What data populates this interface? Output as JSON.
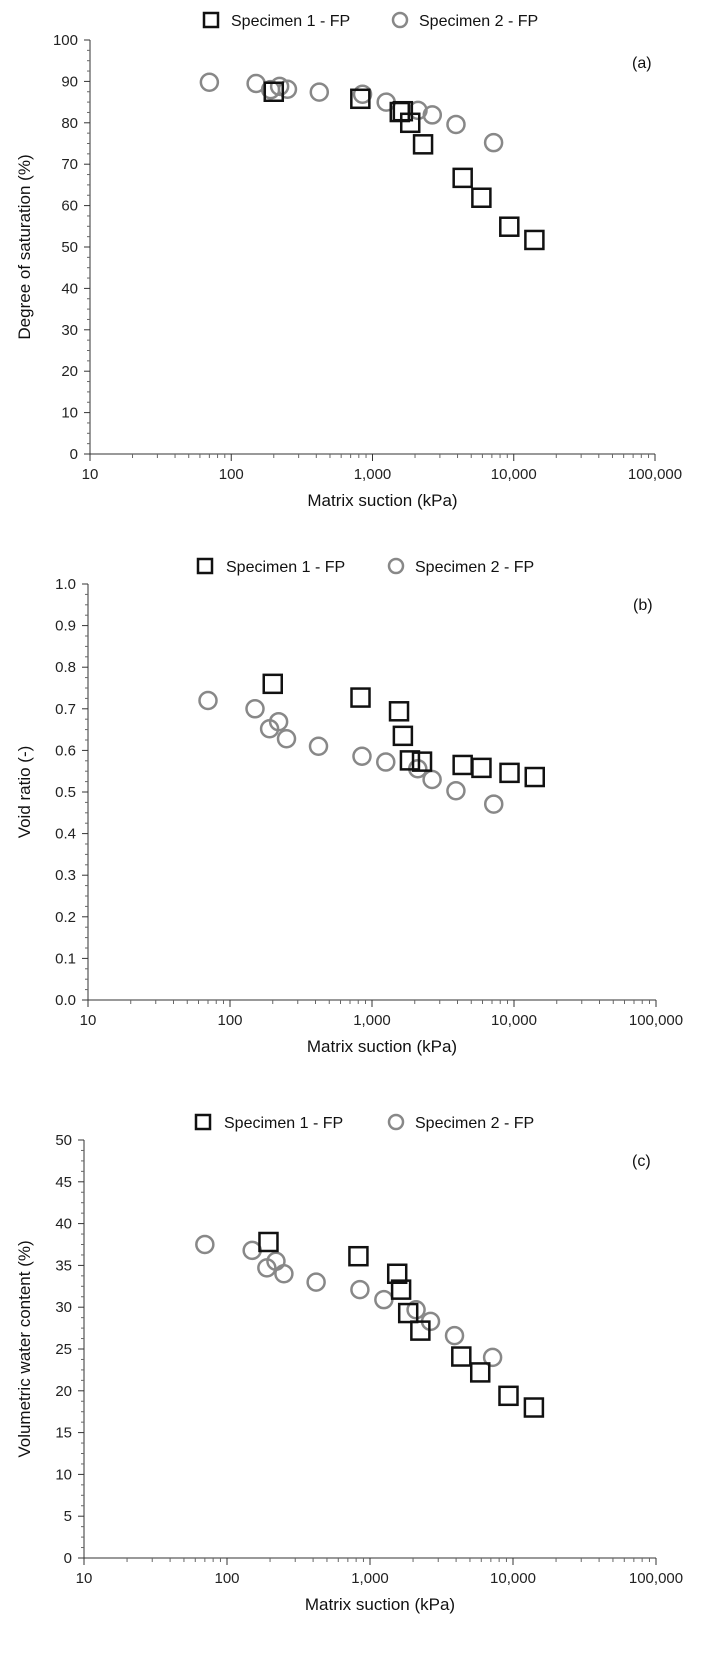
{
  "chart_data": [
    {
      "type": "scatter",
      "panel": "(a)",
      "xlabel": "Matrix suction (kPa)",
      "ylabel": "Degree of saturation (%)",
      "x_scale": "log",
      "xlim": [
        10,
        100000
      ],
      "x_ticks": [
        "10",
        "100",
        "1,000",
        "10,000",
        "100,000"
      ],
      "ylim": [
        0,
        100
      ],
      "y_ticks": [
        "0",
        "10",
        "20",
        "30",
        "40",
        "50",
        "60",
        "70",
        "80",
        "90",
        "100"
      ],
      "grid": false,
      "legend": "top",
      "series": [
        {
          "name": "Specimen 1 - FP",
          "marker": "square",
          "color": "#111111",
          "points": [
            [
              200,
              87.5
            ],
            [
              820,
              85.8
            ],
            [
              1560,
              82.6
            ],
            [
              1640,
              82.8
            ],
            [
              1850,
              80
            ],
            [
              2280,
              74.8
            ],
            [
              4350,
              66.7
            ],
            [
              5900,
              61.9
            ],
            [
              9300,
              54.9
            ],
            [
              14000,
              51.7
            ]
          ]
        },
        {
          "name": "Specimen 2 - FP",
          "marker": "circle",
          "color": "#888888",
          "points": [
            [
              70,
              89.8
            ],
            [
              150,
              89.5
            ],
            [
              190,
              88
            ],
            [
              220,
              88.8
            ],
            [
              250,
              88.1
            ],
            [
              420,
              87.4
            ],
            [
              850,
              86.9
            ],
            [
              1250,
              85
            ],
            [
              2100,
              83
            ],
            [
              2650,
              81.9
            ],
            [
              3900,
              79.6
            ],
            [
              7200,
              75.2
            ]
          ]
        }
      ]
    },
    {
      "type": "scatter",
      "panel": "(b)",
      "xlabel": "Matrix suction (kPa)",
      "ylabel": "Void ratio (-)",
      "x_scale": "log",
      "xlim": [
        10,
        100000
      ],
      "x_ticks": [
        "10",
        "100",
        "1,000",
        "10,000",
        "100,000"
      ],
      "ylim": [
        0,
        1
      ],
      "y_ticks": [
        "0.0",
        "0.1",
        "0.2",
        "0.3",
        "0.4",
        "0.5",
        "0.6",
        "0.7",
        "0.8",
        "0.9",
        "1.0"
      ],
      "grid": false,
      "legend": "top",
      "series": [
        {
          "name": "Specimen 1 - FP",
          "marker": "square",
          "color": "#111111",
          "points": [
            [
              200,
              0.76
            ],
            [
              830,
              0.727
            ],
            [
              1550,
              0.694
            ],
            [
              1650,
              0.635
            ],
            [
              1850,
              0.576
            ],
            [
              2250,
              0.573
            ],
            [
              4350,
              0.565
            ],
            [
              5900,
              0.558
            ],
            [
              9300,
              0.546
            ],
            [
              14000,
              0.536
            ]
          ]
        },
        {
          "name": "Specimen 2 - FP",
          "marker": "circle",
          "color": "#888888",
          "points": [
            [
              70,
              0.72
            ],
            [
              150,
              0.7
            ],
            [
              190,
              0.652
            ],
            [
              220,
              0.669
            ],
            [
              250,
              0.628
            ],
            [
              420,
              0.61
            ],
            [
              850,
              0.586
            ],
            [
              1250,
              0.572
            ],
            [
              2100,
              0.556
            ],
            [
              2650,
              0.53
            ],
            [
              3900,
              0.503
            ],
            [
              7200,
              0.471
            ]
          ]
        }
      ]
    },
    {
      "type": "scatter",
      "panel": "(c)",
      "xlabel": "Matrix suction (kPa)",
      "ylabel": "Volumetric water content (%)",
      "x_scale": "log",
      "xlim": [
        10,
        100000
      ],
      "x_ticks": [
        "10",
        "100",
        "1,000",
        "10,000",
        "100,000"
      ],
      "ylim": [
        0,
        50
      ],
      "y_ticks": [
        "0",
        "5",
        "10",
        "15",
        "20",
        "25",
        "30",
        "35",
        "40",
        "45",
        "50"
      ],
      "grid": false,
      "legend": "top",
      "series": [
        {
          "name": "Specimen 1 - FP",
          "marker": "square",
          "color": "#111111",
          "points": [
            [
              195,
              37.8
            ],
            [
              830,
              36.1
            ],
            [
              1550,
              34
            ],
            [
              1650,
              32.1
            ],
            [
              1850,
              29.3
            ],
            [
              2250,
              27.2
            ],
            [
              4350,
              24.1
            ],
            [
              5900,
              22.2
            ],
            [
              9300,
              19.4
            ],
            [
              14000,
              18
            ]
          ]
        },
        {
          "name": "Specimen 2 - FP",
          "marker": "circle",
          "color": "#888888",
          "points": [
            [
              70,
              37.5
            ],
            [
              150,
              36.8
            ],
            [
              190,
              34.7
            ],
            [
              220,
              35.5
            ],
            [
              250,
              34
            ],
            [
              420,
              33
            ],
            [
              850,
              32.1
            ],
            [
              1250,
              30.9
            ],
            [
              2100,
              29.7
            ],
            [
              2650,
              28.3
            ],
            [
              3900,
              26.6
            ],
            [
              7200,
              24
            ]
          ]
        }
      ]
    }
  ]
}
